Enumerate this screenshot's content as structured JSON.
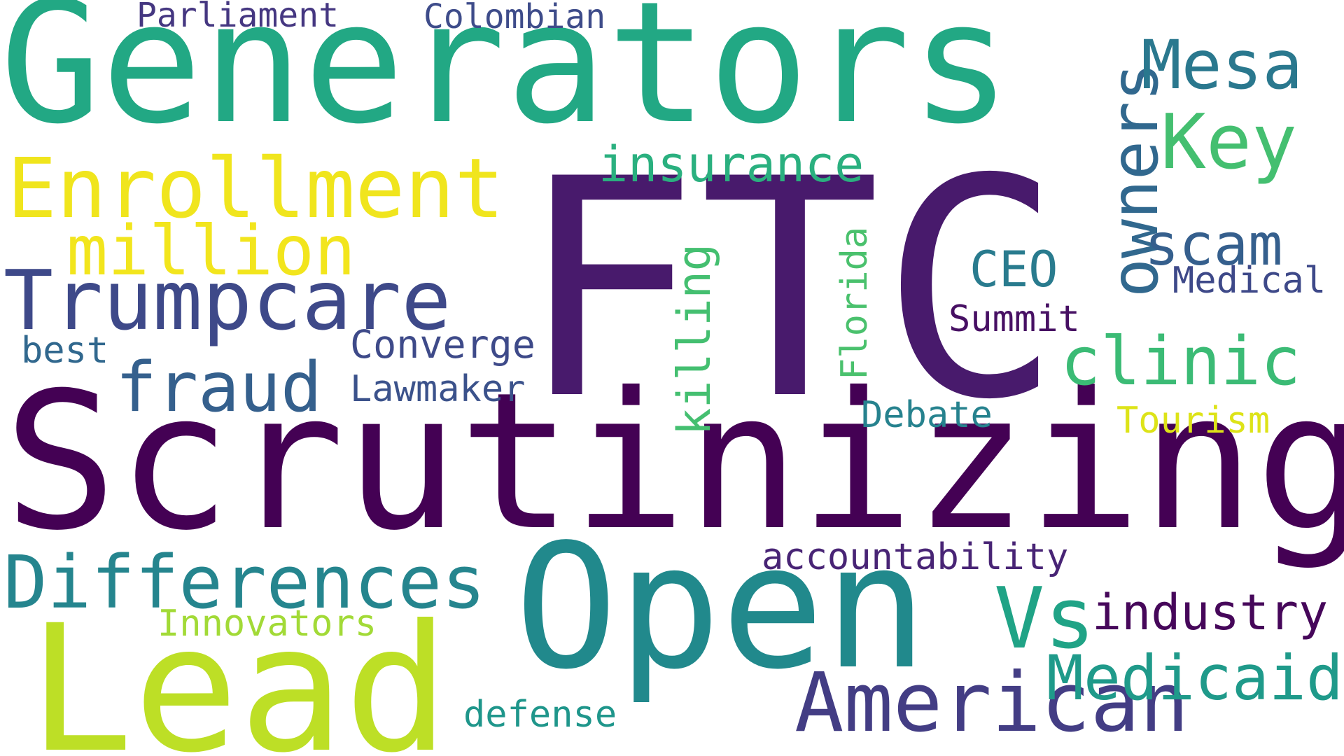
{
  "word_cloud": {
    "background": "#ffffff",
    "words": {
      "generators": {
        "text": "Generators",
        "color": "#22a884"
      },
      "ftc": {
        "text": "FTC",
        "color": "#481a6c"
      },
      "scrutinizing": {
        "text": "Scrutinizing",
        "color": "#440154"
      },
      "open": {
        "text": "Open",
        "color": "#21898c"
      },
      "lead": {
        "text": "Lead",
        "color": "#bddf26"
      },
      "enrollment": {
        "text": "Enrollment",
        "color": "#f0e51d"
      },
      "trumpcare": {
        "text": "Trumpcare",
        "color": "#3e4989"
      },
      "differences": {
        "text": "Differences",
        "color": "#25858e"
      },
      "american": {
        "text": "American",
        "color": "#433d84"
      },
      "fraud": {
        "text": "fraud",
        "color": "#35608d"
      },
      "million": {
        "text": "million",
        "color": "#f2e51d"
      },
      "owners": {
        "text": "owners",
        "color": "#31688e"
      },
      "vs": {
        "text": "Vs",
        "color": "#20a386"
      },
      "key": {
        "text": "Key",
        "color": "#44bf70"
      },
      "mesa": {
        "text": "Mesa",
        "color": "#2a788e"
      },
      "clinic": {
        "text": "clinic",
        "color": "#3bbb75"
      },
      "medicaid": {
        "text": "Medicaid",
        "color": "#1f9a8a"
      },
      "scam": {
        "text": "scam",
        "color": "#355f8d"
      },
      "industry": {
        "text": "industry",
        "color": "#46075a"
      },
      "insurance": {
        "text": "insurance",
        "color": "#2ab07f"
      },
      "killing": {
        "text": "killing",
        "color": "#44bf70"
      },
      "ceo": {
        "text": "CEO",
        "color": "#297b8e"
      },
      "accountability": {
        "text": "accountability",
        "color": "#482475"
      },
      "converge": {
        "text": "Converge",
        "color": "#3e4a89"
      },
      "lawmaker": {
        "text": "Lawmaker",
        "color": "#3b528b"
      },
      "innovators": {
        "text": "Innovators",
        "color": "#a2da37"
      },
      "defense": {
        "text": "defense",
        "color": "#1f968b"
      },
      "summit": {
        "text": "Summit",
        "color": "#471063"
      },
      "debate": {
        "text": "Debate",
        "color": "#26828e"
      },
      "tourism": {
        "text": "Tourism",
        "color": "#dde318"
      },
      "medical": {
        "text": "Medical",
        "color": "#3e4989"
      },
      "best": {
        "text": "best",
        "color": "#31688e"
      },
      "florida": {
        "text": "Florida",
        "color": "#4ac16d"
      },
      "parliament": {
        "text": "Parliament",
        "color": "#453781"
      },
      "colombian": {
        "text": "Colombian",
        "color": "#3e4c8a"
      }
    }
  }
}
